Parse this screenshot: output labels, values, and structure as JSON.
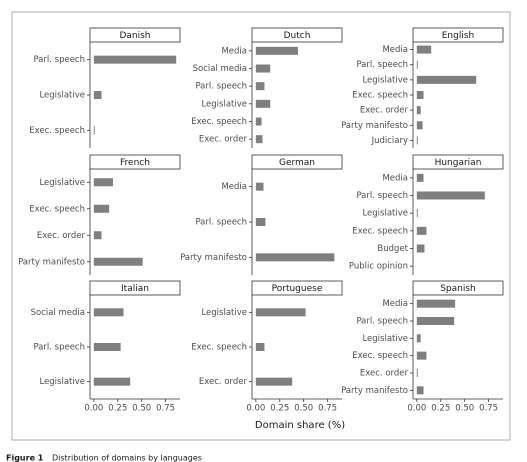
{
  "chart_data": [
    {
      "type": "bar",
      "title": "Danish",
      "categories": [
        "Parl. speech",
        "Legislative",
        "Exec. speech"
      ],
      "values": [
        0.86,
        0.08,
        0.01
      ],
      "color": "#7f7f7f",
      "xlim": [
        -0.04,
        0.9
      ]
    },
    {
      "type": "bar",
      "title": "Dutch",
      "categories": [
        "Media",
        "Social media",
        "Parl. speech",
        "Legislative",
        "Exec. speech",
        "Exec. order"
      ],
      "values": [
        0.44,
        0.15,
        0.09,
        0.15,
        0.06,
        0.07
      ],
      "color": "#7f7f7f",
      "xlim": [
        -0.04,
        0.9
      ]
    },
    {
      "type": "bar",
      "title": "English",
      "categories": [
        "Media",
        "Parl. speech",
        "Legislative",
        "Exec. speech",
        "Exec. order",
        "Party manifesto",
        "Judiciary"
      ],
      "values": [
        0.15,
        0.01,
        0.62,
        0.07,
        0.04,
        0.06,
        0.01
      ],
      "color": "#7f7f7f",
      "xlim": [
        -0.04,
        0.9
      ]
    },
    {
      "type": "bar",
      "title": "French",
      "categories": [
        "Legislative",
        "Exec. speech",
        "Exec. order",
        "Party manifesto"
      ],
      "values": [
        0.2,
        0.16,
        0.08,
        0.51
      ],
      "color": "#7f7f7f",
      "xlim": [
        -0.04,
        0.9
      ]
    },
    {
      "type": "bar",
      "title": "German",
      "categories": [
        "Media",
        "Parl. speech",
        "Party manifesto"
      ],
      "values": [
        0.08,
        0.1,
        0.82
      ],
      "color": "#7f7f7f",
      "xlim": [
        -0.04,
        0.9
      ]
    },
    {
      "type": "bar",
      "title": "Hungarian",
      "categories": [
        "Media",
        "Parl. speech",
        "Legislative",
        "Exec. speech",
        "Budget",
        "Public opinion"
      ],
      "values": [
        0.07,
        0.71,
        0.01,
        0.1,
        0.08,
        0
      ],
      "color": "#7f7f7f",
      "xlim": [
        -0.04,
        0.9
      ]
    },
    {
      "type": "bar",
      "title": "Italian",
      "categories": [
        "Social media",
        "Parl. speech",
        "Legislative"
      ],
      "values": [
        0.31,
        0.28,
        0.38
      ],
      "color": "#7f7f7f",
      "xlim": [
        -0.04,
        0.9
      ],
      "xticks": [
        {
          "value": 0,
          "label": "0.00"
        },
        0.25,
        {
          "value": 0.5,
          "label": "0.50"
        },
        0.75
      ]
    },
    {
      "type": "bar",
      "title": "Portuguese",
      "categories": [
        "Legislative",
        "Exec. speech",
        "Exec. order"
      ],
      "values": [
        0.52,
        0.09,
        0.38
      ],
      "color": "#7f7f7f",
      "xlim": [
        -0.04,
        0.9
      ],
      "xticks": [
        {
          "value": 0,
          "label": "0.00"
        },
        0.25,
        {
          "value": 0.5,
          "label": "0.50"
        },
        0.75
      ]
    },
    {
      "type": "bar",
      "title": "Spanish",
      "categories": [
        "Media",
        "Parl. speech",
        "Legislative",
        "Exec. speech",
        "Exec. order",
        "Party manifesto"
      ],
      "values": [
        0.4,
        0.39,
        0.04,
        0.1,
        0.01,
        0.07
      ],
      "color": "#7f7f7f",
      "xlim": [
        -0.04,
        0.9
      ],
      "xticks": [
        {
          "value": 0,
          "label": "0.00"
        },
        0.25,
        {
          "value": 0.5,
          "label": "0.50"
        },
        0.75
      ]
    }
  ],
  "x_label": "Domain share (%)",
  "caption": {
    "label": "Figure 1",
    "text": "Distribution of domains by languages"
  }
}
